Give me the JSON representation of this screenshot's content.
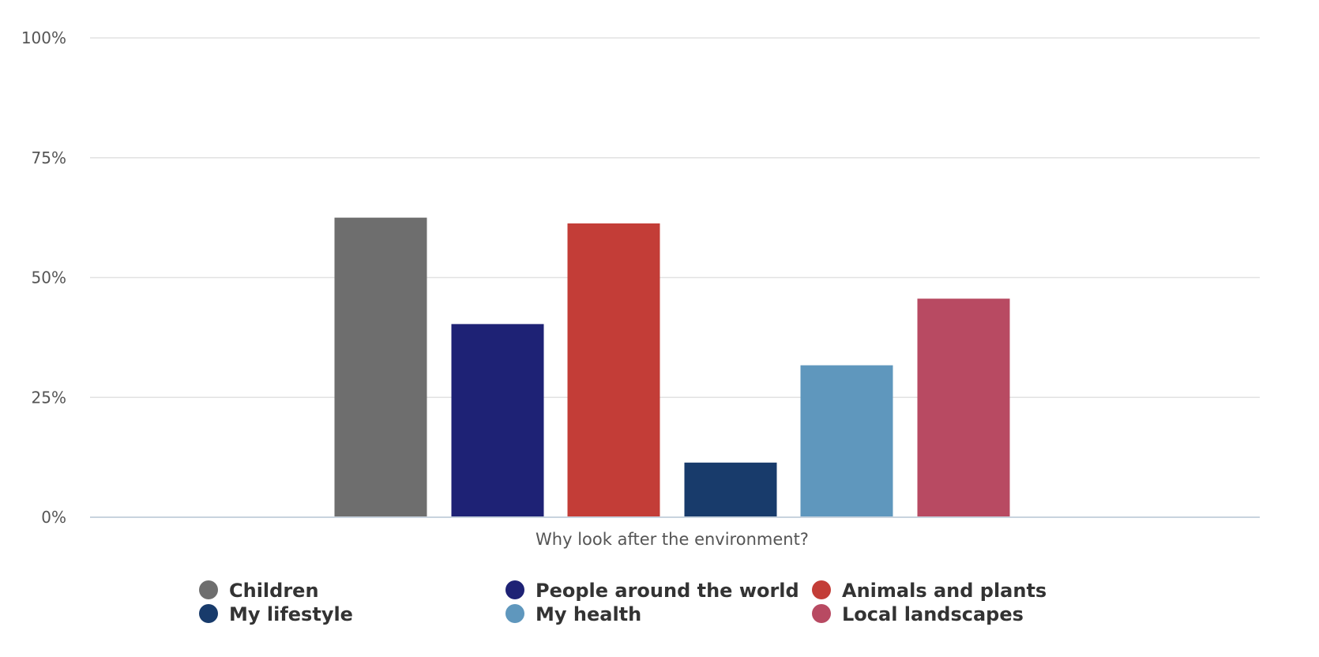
{
  "chart_data": {
    "type": "bar",
    "title": "",
    "xlabel": "Why look after the environment?",
    "ylabel": "",
    "ylim": [
      0,
      100
    ],
    "yticks": [
      "0%",
      "25%",
      "50%",
      "75%",
      "100%"
    ],
    "grid": true,
    "legend_position": "bottom",
    "series": [
      {
        "name": "Children",
        "value": 62.5,
        "color": "#6e6e6e"
      },
      {
        "name": "People around the world",
        "value": 40.3,
        "color": "#1e2275"
      },
      {
        "name": "Animals and plants",
        "value": 61.3,
        "color": "#c33d37"
      },
      {
        "name": "My lifestyle",
        "value": 11.4,
        "color": "#183b6b"
      },
      {
        "name": "My health",
        "value": 31.7,
        "color": "#5f97bd"
      },
      {
        "name": "Local landscapes",
        "value": 45.6,
        "color": "#b84a62"
      }
    ]
  }
}
